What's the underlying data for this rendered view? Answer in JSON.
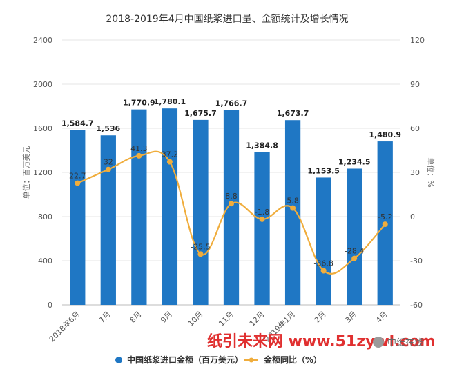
{
  "chart_data": {
    "type": "bar+line",
    "title": "2018-2019年4月中国纸浆进口量、金额统计及增长情况",
    "categories": [
      "2018年6月",
      "7月",
      "8月",
      "9月",
      "10月",
      "11月",
      "12月",
      "2019年1月",
      "2月",
      "3月",
      "4月"
    ],
    "series": [
      {
        "name": "中国纸浆进口金额（百万美元）",
        "type": "bar",
        "axis": "left",
        "color": "#1f77c4",
        "values": [
          1584.7,
          1536,
          1770.9,
          1780.1,
          1675.7,
          1766.7,
          1384.8,
          1673.7,
          1153.5,
          1234.5,
          1480.9
        ],
        "labels": [
          "1,584.7",
          "1,536",
          "1,770.9",
          "1,780.1",
          "1,675.7",
          "1,766.7",
          "1,384.8",
          "1,673.7",
          "1,153.5",
          "1,234.5",
          "1,480.9"
        ]
      },
      {
        "name": "金额同比（%）",
        "type": "line",
        "axis": "right",
        "color": "#f0ad3c",
        "values": [
          22.7,
          32,
          41.3,
          37.2,
          -25.5,
          8.8,
          -1.8,
          5.8,
          -36.8,
          -28.4,
          -5.2
        ],
        "labels": [
          "22.7",
          "32",
          "41.3",
          "37.2",
          "-25.5",
          "8.8",
          "-1.8",
          "5.8",
          "-36.8",
          "-28.4",
          "-5.2"
        ]
      }
    ],
    "ylabel_left": "单位：百万美元",
    "ylabel_right": "单位：%",
    "ylim_left": [
      0,
      2400
    ],
    "yticks_left": [
      "0",
      "400",
      "800",
      "1200",
      "1600",
      "2000",
      "2400"
    ],
    "ylim_right": [
      -60,
      120
    ],
    "yticks_right": [
      "-60",
      "-30",
      "0",
      "30",
      "60",
      "90",
      "120"
    ],
    "grid": true,
    "legend": "bottom"
  },
  "watermark": {
    "text": "纸引未来网 www.51zywl.com",
    "wechat_badge": "中纸在线",
    "brand_watermark": "前瞻"
  }
}
